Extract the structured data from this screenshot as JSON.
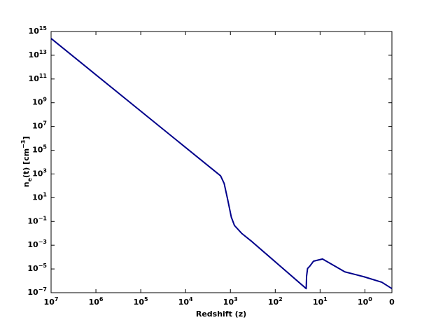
{
  "chart_data": {
    "type": "line",
    "xlabel": "Redshift (z)",
    "ylabel": "n_e(t) [cm^−3]",
    "xscale": "log",
    "yscale": "log",
    "xlim": [
      10000000,
      0.25
    ],
    "xticks": [
      {
        "value": 10000000,
        "label": "10^7"
      },
      {
        "value": 1000000,
        "label": "10^6"
      },
      {
        "value": 100000,
        "label": "10^5"
      },
      {
        "value": 10000,
        "label": "10^4"
      },
      {
        "value": 1000,
        "label": "10^3"
      },
      {
        "value": 100,
        "label": "10^2"
      },
      {
        "value": 10,
        "label": "10^1"
      },
      {
        "value": 1,
        "label": "10^0"
      },
      {
        "value": 0.25,
        "label": "0"
      }
    ],
    "ylim": [
      1e-07,
      1000000000000000.0
    ],
    "yticks": [
      {
        "value": 1e-07,
        "label": "10^−7"
      },
      {
        "value": 1e-05,
        "label": "10^−5"
      },
      {
        "value": 0.001,
        "label": "10^−3"
      },
      {
        "value": 0.1,
        "label": "10^−1"
      },
      {
        "value": 10,
        "label": "10^1"
      },
      {
        "value": 1000,
        "label": "10^3"
      },
      {
        "value": 100000,
        "label": "10^5"
      },
      {
        "value": 10000000,
        "label": "10^7"
      },
      {
        "value": 1000000000,
        "label": "10^9"
      },
      {
        "value": 100000000000,
        "label": "10^11"
      },
      {
        "value": 10000000000000,
        "label": "10^13"
      },
      {
        "value": 1000000000000000,
        "label": "10^15"
      }
    ],
    "color": "#00008b",
    "x": [
      10000000,
      1660,
      1380,
      1150,
      955,
      813,
      562,
      331,
      20.4,
      20,
      19,
      17,
      14,
      9,
      8.9,
      2.8,
      1.05,
      0.42,
      0.25
    ],
    "values": [
      260000000000000.0,
      700,
      160,
      6.9,
      0.23,
      0.046,
      0.01,
      0.002,
      2.2e-07,
      2.5e-06,
      1.1e-05,
      1.7e-05,
      4.5e-05,
      6.8e-05,
      7e-05,
      5.7e-06,
      2.2e-06,
      7.6e-07,
      2.2e-07
    ]
  }
}
